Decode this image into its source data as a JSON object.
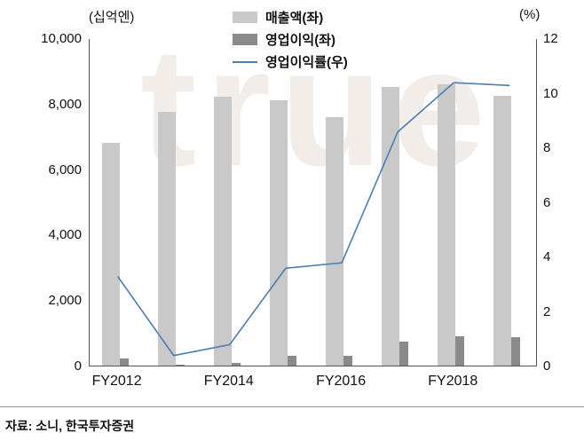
{
  "header": {
    "left_axis_unit": "(십억엔)",
    "right_axis_unit": "(%)"
  },
  "legend": [
    {
      "label": "매출액(좌)",
      "type": "bar",
      "color": "#c9c9c9"
    },
    {
      "label": "영업이익(좌)",
      "type": "bar",
      "color": "#8a8a8a"
    },
    {
      "label": "영업이익률(우)",
      "type": "line",
      "color": "#4a7eb5"
    }
  ],
  "watermark": "true",
  "source": "자료: 소니, 한국투자증권",
  "chart_data": {
    "type": "bar",
    "title": "",
    "categories": [
      "FY2012",
      "FY2013",
      "FY2014",
      "FY2015",
      "FY2016",
      "FY2017",
      "FY2018",
      "FY2019"
    ],
    "series": [
      {
        "name": "매출액(좌)",
        "type": "bar",
        "axis": "left",
        "color": "#c9c9c9",
        "values": [
          6800,
          7750,
          8200,
          8100,
          7600,
          8500,
          8600,
          8250
        ]
      },
      {
        "name": "영업이익(좌)",
        "type": "bar",
        "axis": "left",
        "color": "#8a8a8a",
        "values": [
          230,
          30,
          70,
          290,
          290,
          730,
          900,
          870
        ]
      },
      {
        "name": "영업이익률(우)",
        "type": "line",
        "axis": "right",
        "color": "#4a7eb5",
        "values": [
          3.3,
          0.4,
          0.8,
          3.6,
          3.8,
          8.6,
          10.4,
          10.3
        ]
      }
    ],
    "left_axis": {
      "label": "(십억엔)",
      "min": 0,
      "max": 10000,
      "tick_labels": [
        "10,000",
        "8,000",
        "6,000",
        "4,000",
        "2,000",
        "0"
      ],
      "tick_values": [
        10000,
        8000,
        6000,
        4000,
        2000,
        0
      ]
    },
    "right_axis": {
      "label": "(%)",
      "min": 0,
      "max": 12,
      "tick_labels": [
        "12",
        "10",
        "8",
        "6",
        "4",
        "2",
        "0"
      ],
      "tick_values": [
        12,
        10,
        8,
        6,
        4,
        2,
        0
      ]
    },
    "x_ticks": [
      {
        "label": "FY2012",
        "category_index": 0
      },
      {
        "label": "FY2014",
        "category_index": 2
      },
      {
        "label": "FY2016",
        "category_index": 4
      },
      {
        "label": "FY2018",
        "category_index": 6
      }
    ],
    "grid": false,
    "legend_position": "top-center"
  }
}
